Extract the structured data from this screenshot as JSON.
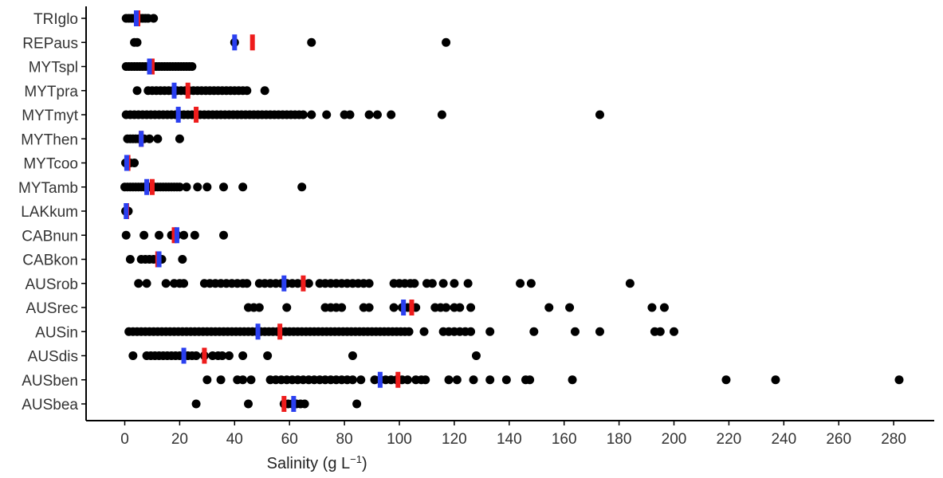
{
  "chart_data": {
    "type": "scatter",
    "xlabel": "Salinity (g L",
    "xlabel_superscript": "−1",
    "xlabel_close": ")",
    "xlim": [
      -14,
      295
    ],
    "xticks": [
      0,
      20,
      40,
      60,
      80,
      100,
      120,
      140,
      160,
      180,
      200,
      220,
      240,
      260,
      280
    ],
    "grid": false,
    "legend": "none",
    "colors": {
      "points": "#000000",
      "mean": "#ee1c1c",
      "median": "#2a3ff0",
      "axis": "#000000"
    },
    "categories": [
      "TRIglo",
      "REPaus",
      "MYTspl",
      "MYTpra",
      "MYTmyt",
      "MYThen",
      "MYTcoo",
      "MYTamb",
      "LAKkum",
      "CABnun",
      "CABkon",
      "AUSrob",
      "AUSrec",
      "AUSin",
      "AUSdis",
      "AUSben",
      "AUSbea"
    ],
    "series": [
      {
        "category": "TRIglo",
        "points": [
          0.5,
          1.5,
          2.5,
          3.5,
          4.5,
          5.5,
          6.5,
          7.5,
          8.5,
          10.5
        ],
        "mean": 4.8,
        "median": 4.2
      },
      {
        "category": "REPaus",
        "points": [
          3.5,
          4.5,
          40,
          68,
          117
        ],
        "mean": 46.5,
        "median": 40
      },
      {
        "category": "MYTspl",
        "points": [
          0.5,
          1.5,
          2.5,
          3.5,
          4.5,
          5.5,
          6.5,
          7.5,
          8.5,
          9.5,
          10.5,
          11.5,
          12.5,
          13.5,
          14.5,
          15.5,
          16.5,
          17.5,
          18.5,
          19.5,
          20.5,
          21.5,
          22.5,
          23.5,
          24.5
        ],
        "mean": 10,
        "median": 9
      },
      {
        "category": "MYTpra",
        "points": [
          4.5,
          8.5,
          10,
          11.5,
          13,
          14.5,
          16,
          17.5,
          19,
          20.5,
          22,
          23.5,
          25,
          26.5,
          28,
          29.5,
          31,
          32.5,
          34,
          35.5,
          37,
          38.5,
          40,
          41.5,
          43,
          44.5,
          51
        ],
        "mean": 23,
        "median": 18
      },
      {
        "category": "MYTmyt",
        "points": [
          0.5,
          2,
          3.5,
          5,
          6.5,
          8,
          9.5,
          11,
          12.5,
          14,
          15.5,
          17,
          18.5,
          20,
          21.5,
          23,
          24.5,
          26,
          27.5,
          29,
          30.5,
          32,
          33.5,
          35,
          36.5,
          38,
          39.5,
          41,
          42.5,
          44,
          45.5,
          47,
          48.5,
          50,
          51.5,
          53,
          54.5,
          56,
          57.5,
          59,
          60.5,
          62,
          63.5,
          65,
          68,
          73.5,
          80,
          82,
          89,
          92,
          97,
          115.5,
          173
        ],
        "mean": 26,
        "median": 19.5
      },
      {
        "category": "MYThen",
        "points": [
          1,
          2,
          3,
          4,
          5,
          6,
          7,
          9,
          12,
          20
        ],
        "mean": 6,
        "median": 6
      },
      {
        "category": "MYTcoo",
        "points": [
          0.3,
          1,
          2,
          3.5
        ],
        "mean": 1.2,
        "median": 0.7
      },
      {
        "category": "MYTamb",
        "points": [
          0,
          1,
          2,
          3,
          4,
          5,
          6,
          7,
          8,
          9,
          10,
          11,
          12,
          13,
          14,
          15,
          16,
          17,
          18,
          19,
          20,
          22.5,
          26.5,
          30,
          36,
          43,
          64.5
        ],
        "mean": 10,
        "median": 8
      },
      {
        "category": "LAKkum",
        "points": [
          0.3,
          0.8,
          1.3
        ],
        "mean": 0.7,
        "median": 0.5
      },
      {
        "category": "CABnun",
        "points": [
          0.5,
          7,
          12.5,
          17,
          19,
          21.5,
          25.5,
          36
        ],
        "mean": 18,
        "median": 19
      },
      {
        "category": "CABkon",
        "points": [
          2,
          6,
          7.5,
          9,
          10.5,
          12,
          13.5,
          21
        ],
        "mean": 12,
        "median": 12.5
      },
      {
        "category": "AUSrob",
        "points": [
          5,
          8,
          15,
          18,
          20,
          21.5,
          29,
          31,
          33,
          35,
          37,
          39,
          41,
          43,
          44.5,
          49,
          51,
          53,
          55,
          57,
          59,
          61,
          63,
          65,
          67,
          71,
          73,
          75,
          77,
          79,
          81,
          83,
          85,
          87,
          89,
          98,
          100,
          102,
          104,
          105.5,
          110,
          112,
          116,
          120,
          125,
          144,
          148,
          184
        ],
        "mean": 65,
        "median": 58
      },
      {
        "category": "AUSrec",
        "points": [
          45,
          47,
          49,
          59,
          73,
          75,
          77,
          79,
          87,
          89,
          98,
          101,
          103,
          104,
          106,
          113,
          115,
          117,
          120,
          122,
          126,
          154.5,
          162,
          192,
          196.5
        ],
        "mean": 104.5,
        "median": 101.5
      },
      {
        "category": "AUSin",
        "points": [
          1.5,
          3,
          4.5,
          6,
          7.5,
          9,
          10.5,
          12,
          13.5,
          15,
          16.5,
          18,
          19.5,
          21,
          22.5,
          24,
          25.5,
          27,
          28.5,
          30,
          31.5,
          33,
          34.5,
          36,
          37.5,
          39,
          40.5,
          42,
          43.5,
          45,
          46.5,
          48,
          49.5,
          51,
          52.5,
          54,
          55.5,
          57,
          58.5,
          60,
          61.5,
          63,
          64.5,
          66,
          67.5,
          69,
          70.5,
          72,
          73.5,
          75,
          76.5,
          78,
          79.5,
          81,
          82.5,
          84,
          85.5,
          87,
          88.5,
          90,
          91.5,
          93,
          94.5,
          96,
          97.5,
          99,
          100.5,
          102,
          103.5,
          109,
          116,
          118,
          120,
          122,
          124,
          126,
          133,
          149,
          164,
          173,
          193,
          195,
          200
        ],
        "mean": 56.5,
        "median": 48.5
      },
      {
        "category": "AUSdis",
        "points": [
          3,
          8,
          9.5,
          11,
          12.5,
          14,
          15.5,
          17,
          18.5,
          20,
          21.5,
          23,
          24.5,
          26,
          29,
          32,
          34,
          35.5,
          38,
          43,
          52,
          83,
          128
        ],
        "mean": 29,
        "median": 21.5
      },
      {
        "category": "AUSben",
        "points": [
          30,
          35,
          41,
          43,
          46,
          53,
          55,
          57,
          59,
          61,
          63,
          65,
          67,
          69,
          71,
          73,
          75,
          77,
          79,
          81,
          83,
          86,
          91,
          93,
          95,
          97,
          99,
          101,
          103,
          106,
          108,
          109.5,
          118,
          121,
          127,
          133,
          139,
          146,
          147.5,
          163,
          219,
          237,
          282
        ],
        "mean": 99.5,
        "median": 93
      },
      {
        "category": "AUSbea",
        "points": [
          26,
          45,
          58,
          59.5,
          61,
          62.5,
          64,
          65.5,
          84.5
        ],
        "mean": 58,
        "median": 61.5
      }
    ]
  }
}
